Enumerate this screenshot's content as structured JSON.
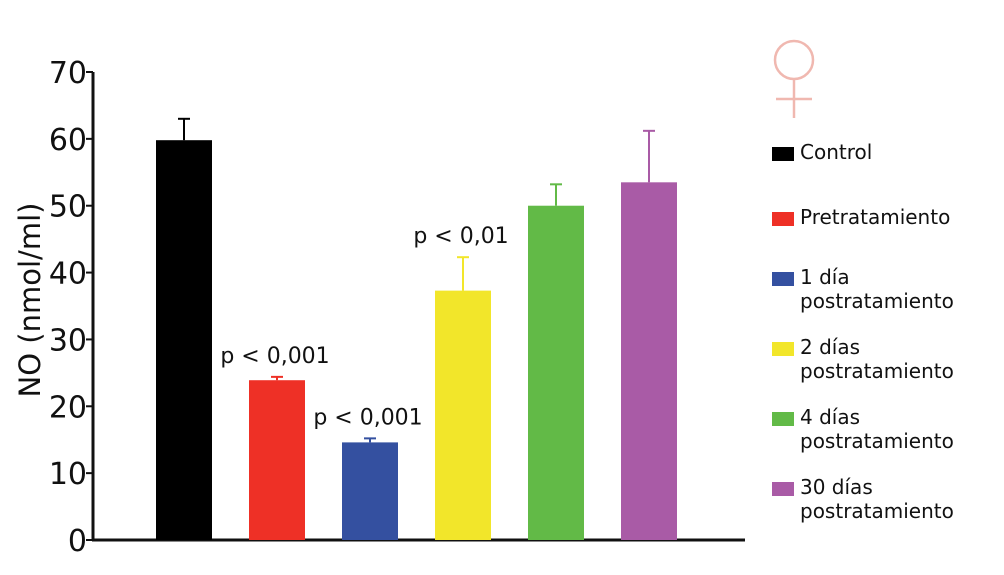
{
  "chart_data": {
    "type": "bar",
    "title": "",
    "xlabel": "",
    "ylabel": "NO (nmol/ml)",
    "ylim": [
      0,
      70
    ],
    "yticks": [
      "0",
      "10",
      "20",
      "30",
      "40",
      "50",
      "60",
      "70"
    ],
    "grid": false,
    "legend_placement": "right",
    "categories": [
      "Control",
      "Pretratamiento",
      "1 día postratamiento",
      "2 días postratamiento",
      "4 días postratamiento",
      "30 días postratamiento"
    ],
    "values": [
      59.8,
      23.9,
      14.6,
      37.3,
      50.0,
      53.5
    ],
    "error_plus": [
      3.2,
      0.5,
      0.6,
      5.0,
      3.2,
      7.7
    ],
    "colors": [
      "#000000",
      "#ee3026",
      "#3450a0",
      "#f2e62a",
      "#62ba47",
      "#a95ba6"
    ],
    "annotations": [
      "p < 0,001",
      "p < 0,001",
      "p < 0,01"
    ],
    "annotation_targets": [
      1,
      2,
      3
    ]
  },
  "legend": {
    "items": [
      {
        "lines": [
          "Control"
        ],
        "color": "#000000"
      },
      {
        "lines": [
          "Pretratamiento"
        ],
        "color": "#ee3026"
      },
      {
        "lines": [
          "1 día",
          "postratamiento"
        ],
        "color": "#3450a0"
      },
      {
        "lines": [
          "2 días",
          "postratamiento"
        ],
        "color": "#f2e62a"
      },
      {
        "lines": [
          "4 días",
          "postratamiento"
        ],
        "color": "#62ba47"
      },
      {
        "lines": [
          "30 días",
          "postratamiento"
        ],
        "color": "#a95ba6"
      }
    ]
  },
  "symbol": {
    "icon": "female-symbol-icon",
    "color": "#f0b8b0"
  }
}
